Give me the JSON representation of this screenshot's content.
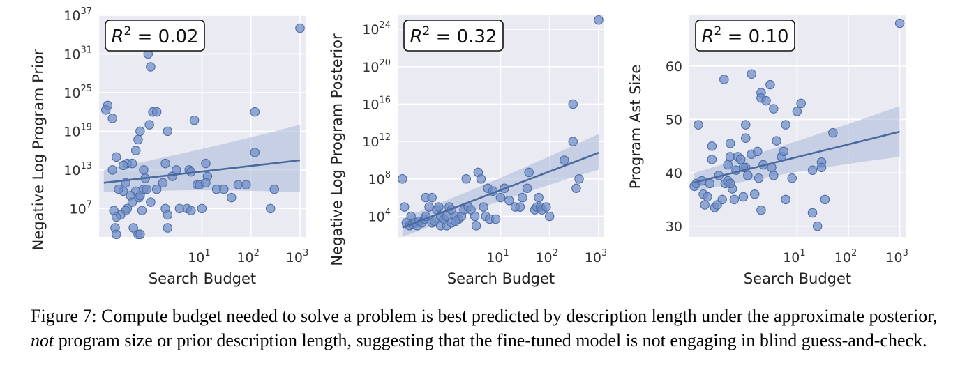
{
  "colors": {
    "panel_bg": "#EAEAF2",
    "grid": "#FFFFFF",
    "point_fill": "#6F8EC6",
    "point_edge": "#4C6DA6",
    "line": "#4A6A9E",
    "band": "#A7B8D8"
  },
  "chart_data": [
    {
      "type": "scatter",
      "xlabel": "Search Budget",
      "ylabel": "Negative Log Program Prior",
      "x_scale": "log",
      "y_scale": "log",
      "xlim": [
        0.08,
        1300
      ],
      "ylim_log10": [
        2.6,
        37
      ],
      "grid": true,
      "x_ticks": [
        {
          "base": "10",
          "exp": "1",
          "v": 1
        },
        {
          "base": "10",
          "exp": "2",
          "v": 2
        },
        {
          "base": "10",
          "exp": "3",
          "v": 3
        }
      ],
      "y_ticks": [
        {
          "base": "10",
          "exp": "7",
          "v": 7
        },
        {
          "base": "10",
          "exp": "13",
          "v": 13
        },
        {
          "base": "10",
          "exp": "19",
          "v": 19
        },
        {
          "base": "10",
          "exp": "25",
          "v": 25
        },
        {
          "base": "10",
          "exp": "31",
          "v": 31
        },
        {
          "base": "10",
          "exp": "37",
          "v": 37
        }
      ],
      "annotation": {
        "italic": "R",
        "exp": "2",
        "rest": " = 0.02"
      },
      "regression": {
        "x": [
          0.1,
          1000
        ],
        "y_log10": [
          11.0,
          14.5
        ],
        "band_upper_log10": [
          13.0,
          20.0
        ],
        "band_lower_log10": [
          9.5,
          9.5
        ]
      },
      "points": [
        {
          "x": 1000,
          "y": "1e35"
        },
        {
          "x": 0.12,
          "y": "1e23"
        },
        {
          "x": 0.11,
          "y": "2e22"
        },
        {
          "x": 0.15,
          "y": "1e21"
        },
        {
          "x": 0.8,
          "y": "1e31"
        },
        {
          "x": 0.9,
          "y": "1e29"
        },
        {
          "x": 1.0,
          "y": "1e22"
        },
        {
          "x": 1.2,
          "y": "1e22"
        },
        {
          "x": 0.85,
          "y": "1e20"
        },
        {
          "x": 2.0,
          "y": "1e19"
        },
        {
          "x": 0.55,
          "y": "1e19"
        },
        {
          "x": 0.5,
          "y": "5e17"
        },
        {
          "x": 0.45,
          "y": "1e16"
        },
        {
          "x": 0.18,
          "y": "1e15"
        },
        {
          "x": 0.15,
          "y": "1e13"
        },
        {
          "x": 0.3,
          "y": "1e14"
        },
        {
          "x": 0.38,
          "y": "1e14"
        },
        {
          "x": 0.25,
          "y": "5e13"
        },
        {
          "x": 0.65,
          "y": "1e13"
        },
        {
          "x": 0.7,
          "y": "5e11"
        },
        {
          "x": 0.28,
          "y": "1e11"
        },
        {
          "x": 0.45,
          "y": "5e9"
        },
        {
          "x": 0.25,
          "y": "5e9"
        },
        {
          "x": 0.2,
          "y": "1e10"
        },
        {
          "x": 0.35,
          "y": "1e9"
        },
        {
          "x": 0.38,
          "y": "1e8"
        },
        {
          "x": 0.52,
          "y": "5e8"
        },
        {
          "x": 0.55,
          "y": "1e9"
        },
        {
          "x": 0.65,
          "y": "1e10"
        },
        {
          "x": 0.75,
          "y": "1e10"
        },
        {
          "x": 0.9,
          "y": "1e8"
        },
        {
          "x": 0.6,
          "y": "5e6"
        },
        {
          "x": 0.3,
          "y": "1e7"
        },
        {
          "x": 0.28,
          "y": "5e6"
        },
        {
          "x": 0.22,
          "y": "1e6"
        },
        {
          "x": 0.18,
          "y": "5e5"
        },
        {
          "x": 0.16,
          "y": "5e6"
        },
        {
          "x": 0.17,
          "y": "1e4"
        },
        {
          "x": 0.18,
          "y": "1e3"
        },
        {
          "x": 0.5,
          "y": "1e3"
        },
        {
          "x": 0.55,
          "y": "1e3"
        },
        {
          "x": 1.2,
          "y": "1e10"
        },
        {
          "x": 1.6,
          "y": "1e11"
        },
        {
          "x": 1.8,
          "y": "1e14"
        },
        {
          "x": 2.5,
          "y": "1e12"
        },
        {
          "x": 1.8,
          "y": "1e7"
        },
        {
          "x": 2.0,
          "y": "1e6"
        },
        {
          "x": 3.0,
          "y": "1e13"
        },
        {
          "x": 5.5,
          "y": "1e13"
        },
        {
          "x": 6,
          "y": "5e12"
        },
        {
          "x": 3.5,
          "y": "1e7"
        },
        {
          "x": 5,
          "y": "1e7"
        },
        {
          "x": 6,
          "y": "5e6"
        },
        {
          "x": 8,
          "y": "5e10"
        },
        {
          "x": 9,
          "y": "5e10"
        },
        {
          "x": 7,
          "y": "5e20"
        },
        {
          "x": 10,
          "y": "1e7"
        },
        {
          "x": 12,
          "y": "1e14"
        },
        {
          "x": 13,
          "y": "1e12"
        },
        {
          "x": 12,
          "y": "1e11"
        },
        {
          "x": 20,
          "y": "1e10"
        },
        {
          "x": 28,
          "y": "1e10"
        },
        {
          "x": 40,
          "y": "5e8"
        },
        {
          "x": 55,
          "y": "5e10"
        },
        {
          "x": 120,
          "y": "1e22"
        },
        {
          "x": 120,
          "y": "5e15"
        },
        {
          "x": 80,
          "y": "5e10"
        },
        {
          "x": 300,
          "y": "1e10"
        },
        {
          "x": 250,
          "y": "1e7"
        },
        {
          "x": 2.0,
          "y": "1e4"
        },
        {
          "x": 0.4,
          "y": "1e4"
        }
      ]
    },
    {
      "type": "scatter",
      "xlabel": "Search Budget",
      "ylabel": "Negative Log Program Posterior",
      "x_scale": "log",
      "y_scale": "log",
      "xlim": [
        0.08,
        1300
      ],
      "ylim_log10": [
        1.8,
        25.5
      ],
      "grid": true,
      "x_ticks": [
        {
          "base": "10",
          "exp": "1",
          "v": 1
        },
        {
          "base": "10",
          "exp": "2",
          "v": 2
        },
        {
          "base": "10",
          "exp": "3",
          "v": 3
        }
      ],
      "y_ticks": [
        {
          "base": "10",
          "exp": "4",
          "v": 4
        },
        {
          "base": "10",
          "exp": "8",
          "v": 8
        },
        {
          "base": "10",
          "exp": "12",
          "v": 12
        },
        {
          "base": "10",
          "exp": "16",
          "v": 16
        },
        {
          "base": "10",
          "exp": "20",
          "v": 20
        },
        {
          "base": "10",
          "exp": "24",
          "v": 24
        }
      ],
      "annotation": {
        "italic": "R",
        "exp": "2",
        "rest": " = 0.32"
      },
      "regression": {
        "x": [
          0.1,
          1000
        ],
        "y_log10": [
          2.8,
          10.8
        ],
        "band_upper_log10": [
          3.8,
          12.8
        ],
        "band_lower_log10": [
          1.8,
          9.0
        ]
      },
      "points": [
        {
          "x": 1000,
          "y": "1e25"
        },
        {
          "x": 300,
          "y": "1e16"
        },
        {
          "x": 300,
          "y": "1e12"
        },
        {
          "x": 200,
          "y": "1e10"
        },
        {
          "x": 400,
          "y": "1e8"
        },
        {
          "x": 350,
          "y": "1e7"
        },
        {
          "x": 0.1,
          "y": "1e8"
        },
        {
          "x": 0.11,
          "y": "1e5"
        },
        {
          "x": 0.15,
          "y": "1e4"
        },
        {
          "x": 2.0,
          "y": "1e8"
        },
        {
          "x": 3.5,
          "y": "5e8"
        },
        {
          "x": 4.0,
          "y": "1e8"
        },
        {
          "x": 5.5,
          "y": "1e7"
        },
        {
          "x": 7,
          "y": "5e6"
        },
        {
          "x": 10,
          "y": "1e6"
        },
        {
          "x": 12,
          "y": "1e7"
        },
        {
          "x": 15,
          "y": "5e5"
        },
        {
          "x": 20,
          "y": "1e5"
        },
        {
          "x": 25,
          "y": "1e5"
        },
        {
          "x": 35,
          "y": "1e7"
        },
        {
          "x": 38,
          "y": "5e8"
        },
        {
          "x": 28,
          "y": "1e6"
        },
        {
          "x": 50,
          "y": "5e4"
        },
        {
          "x": 55,
          "y": "1e5"
        },
        {
          "x": 60,
          "y": "1e6"
        },
        {
          "x": 65,
          "y": "1e5"
        },
        {
          "x": 70,
          "y": "5e4"
        },
        {
          "x": 85,
          "y": "1e5"
        },
        {
          "x": 100,
          "y": "1e4"
        },
        {
          "x": 0.3,
          "y": "1e6"
        },
        {
          "x": 0.35,
          "y": "1e5"
        },
        {
          "x": 0.4,
          "y": "1e6"
        },
        {
          "x": 0.5,
          "y": "5e4"
        },
        {
          "x": 0.55,
          "y": "1e5"
        },
        {
          "x": 0.6,
          "y": "1e4"
        },
        {
          "x": 0.7,
          "y": "5e3"
        },
        {
          "x": 0.8,
          "y": "1e4"
        },
        {
          "x": 0.9,
          "y": "1e5"
        },
        {
          "x": 1.0,
          "y": "5e4"
        },
        {
          "x": 1.2,
          "y": "1e4"
        },
        {
          "x": 1.4,
          "y": "5e3"
        },
        {
          "x": 1.6,
          "y": "1e4"
        },
        {
          "x": 1.8,
          "y": "5e4"
        },
        {
          "x": 2.2,
          "y": "1e5"
        },
        {
          "x": 2.5,
          "y": "5e4"
        },
        {
          "x": 3.0,
          "y": "1e4"
        },
        {
          "x": 3.2,
          "y": "1e3"
        },
        {
          "x": 4.5,
          "y": "1e5"
        },
        {
          "x": 5.0,
          "y": "1e4"
        },
        {
          "x": 6.0,
          "y": "5e3"
        },
        {
          "x": 0.12,
          "y": "2e3"
        },
        {
          "x": 0.14,
          "y": "1e3"
        },
        {
          "x": 0.16,
          "y": "1.5e3"
        },
        {
          "x": 0.18,
          "y": "2e3"
        },
        {
          "x": 0.2,
          "y": "1e3"
        },
        {
          "x": 0.22,
          "y": "3e3"
        },
        {
          "x": 0.25,
          "y": "2e3"
        },
        {
          "x": 0.28,
          "y": "5e3"
        },
        {
          "x": 0.3,
          "y": "1e4"
        },
        {
          "x": 0.4,
          "y": "2e3"
        },
        {
          "x": 0.45,
          "y": "3e3"
        },
        {
          "x": 0.6,
          "y": "1e3"
        },
        {
          "x": 0.8,
          "y": "1e3"
        },
        {
          "x": 1.0,
          "y": "2e3"
        },
        {
          "x": 1.2,
          "y": "3e3"
        },
        {
          "x": 8,
          "y": "5e3"
        }
      ]
    },
    {
      "type": "scatter",
      "xlabel": "Search Budget",
      "ylabel": "Program Ast Size",
      "x_scale": "log",
      "y_scale": "linear",
      "xlim": [
        0.08,
        1300
      ],
      "ylim": [
        28,
        69.5
      ],
      "grid": true,
      "x_ticks": [
        {
          "base": "10",
          "exp": "1",
          "v": 1
        },
        {
          "base": "10",
          "exp": "2",
          "v": 2
        },
        {
          "base": "10",
          "exp": "3",
          "v": 3
        }
      ],
      "y_ticks": [
        {
          "label": "30",
          "v": 30
        },
        {
          "label": "40",
          "v": 40
        },
        {
          "label": "50",
          "v": 50
        },
        {
          "label": "60",
          "v": 60
        }
      ],
      "annotation": {
        "italic": "R",
        "exp": "2",
        "rest": " = 0.10"
      },
      "regression": {
        "x": [
          0.1,
          1000
        ],
        "y": [
          38.2,
          47.7
        ],
        "band_upper": [
          40.0,
          52.5
        ],
        "band_lower": [
          36.5,
          43.0
        ]
      },
      "points": [
        {
          "x": 1000,
          "y": 68
        },
        {
          "x": 0.1,
          "y": 37.5
        },
        {
          "x": 0.11,
          "y": 38
        },
        {
          "x": 0.12,
          "y": 49
        },
        {
          "x": 0.14,
          "y": 38.5
        },
        {
          "x": 0.15,
          "y": 36
        },
        {
          "x": 0.16,
          "y": 34
        },
        {
          "x": 0.18,
          "y": 35.5
        },
        {
          "x": 0.2,
          "y": 38
        },
        {
          "x": 0.22,
          "y": 42.5
        },
        {
          "x": 0.22,
          "y": 45
        },
        {
          "x": 0.25,
          "y": 33.5
        },
        {
          "x": 0.28,
          "y": 34
        },
        {
          "x": 0.3,
          "y": 39.5
        },
        {
          "x": 0.35,
          "y": 35
        },
        {
          "x": 0.4,
          "y": 38
        },
        {
          "x": 0.45,
          "y": 41.5
        },
        {
          "x": 0.5,
          "y": 45.5
        },
        {
          "x": 0.5,
          "y": 43
        },
        {
          "x": 0.55,
          "y": 37
        },
        {
          "x": 0.6,
          "y": 35
        },
        {
          "x": 0.65,
          "y": 40.5
        },
        {
          "x": 0.7,
          "y": 43
        },
        {
          "x": 0.8,
          "y": 42.5
        },
        {
          "x": 0.9,
          "y": 35.5
        },
        {
          "x": 1.0,
          "y": 41
        },
        {
          "x": 1.0,
          "y": 49
        },
        {
          "x": 1.1,
          "y": 39.5
        },
        {
          "x": 1.3,
          "y": 43.5
        },
        {
          "x": 1.5,
          "y": 36
        },
        {
          "x": 0.38,
          "y": 57.5
        },
        {
          "x": 1.0,
          "y": 46.5
        },
        {
          "x": 1.3,
          "y": 58.5
        },
        {
          "x": 2.0,
          "y": 55
        },
        {
          "x": 2.0,
          "y": 54
        },
        {
          "x": 2.5,
          "y": 53.5
        },
        {
          "x": 3.0,
          "y": 56.5
        },
        {
          "x": 3.5,
          "y": 52
        },
        {
          "x": 4.0,
          "y": 46
        },
        {
          "x": 5.0,
          "y": 43
        },
        {
          "x": 5.5,
          "y": 44
        },
        {
          "x": 6.0,
          "y": 49
        },
        {
          "x": 8.0,
          "y": 39
        },
        {
          "x": 10,
          "y": 51.5
        },
        {
          "x": 12,
          "y": 53
        },
        {
          "x": 6.0,
          "y": 35
        },
        {
          "x": 2.0,
          "y": 33
        },
        {
          "x": 1.8,
          "y": 39
        },
        {
          "x": 1.7,
          "y": 44
        },
        {
          "x": 3.2,
          "y": 41
        },
        {
          "x": 3.5,
          "y": 39.5
        },
        {
          "x": 2.2,
          "y": 41.5
        },
        {
          "x": 20,
          "y": 40.5
        },
        {
          "x": 20,
          "y": 32.5
        },
        {
          "x": 25,
          "y": 30
        },
        {
          "x": 30,
          "y": 42
        },
        {
          "x": 30,
          "y": 41
        },
        {
          "x": 35,
          "y": 35
        },
        {
          "x": 50,
          "y": 47.5
        },
        {
          "x": 0.45,
          "y": 38.5
        },
        {
          "x": 0.5,
          "y": 38
        },
        {
          "x": 0.9,
          "y": 41
        }
      ]
    }
  ],
  "caption": {
    "part1": "Figure 7: Compute budget needed to solve a problem is best predicted by description length under the approximate posterior, ",
    "emph": "not",
    "part2": " program size or prior description length, suggesting that the fine-tuned model is not engaging in blind guess-and-check."
  }
}
